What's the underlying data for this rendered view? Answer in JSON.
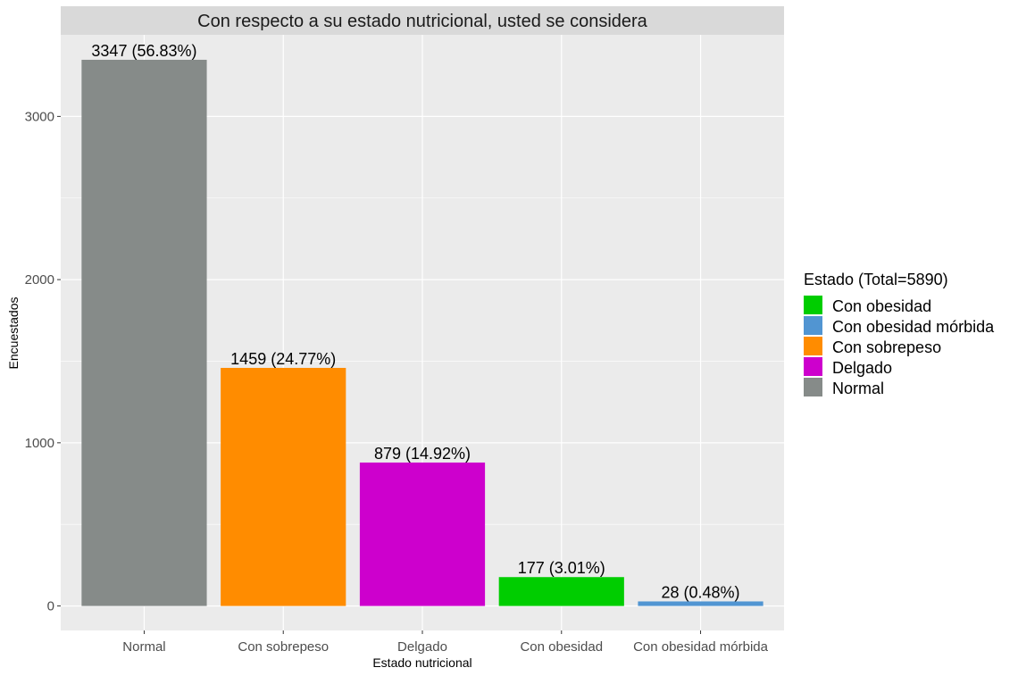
{
  "chart_data": {
    "type": "bar",
    "title": "Con respecto a su estado nutricional, usted se considera",
    "xlabel": "Estado nutricional",
    "ylabel": "Encuestados",
    "categories": [
      "Normal",
      "Con sobrepeso",
      "Delgado",
      "Con obesidad",
      "Con obesidad mórbida"
    ],
    "values": [
      3347,
      1459,
      879,
      177,
      28
    ],
    "bar_labels": [
      "3347 (56.83%)",
      "1459 (24.77%)",
      "879 (14.92%)",
      "177 (3.01%)",
      "28 (0.48%)"
    ],
    "bar_colors": [
      "#868B89",
      "#FF8C00",
      "#CD00CD",
      "#00CD00",
      "#5195D2"
    ],
    "ylim": [
      -150,
      3500
    ],
    "yticks": [
      0,
      1000,
      2000,
      3000
    ],
    "grid": true,
    "legend": {
      "title": "Estado (Total=5890)",
      "position": "right",
      "entries": [
        {
          "label": "Con obesidad",
          "color": "#00CD00"
        },
        {
          "label": "Con obesidad mórbida",
          "color": "#5195D2"
        },
        {
          "label": "Con sobrepeso",
          "color": "#FF8C00"
        },
        {
          "label": "Delgado",
          "color": "#CD00CD"
        },
        {
          "label": "Normal",
          "color": "#868B89"
        }
      ]
    }
  }
}
